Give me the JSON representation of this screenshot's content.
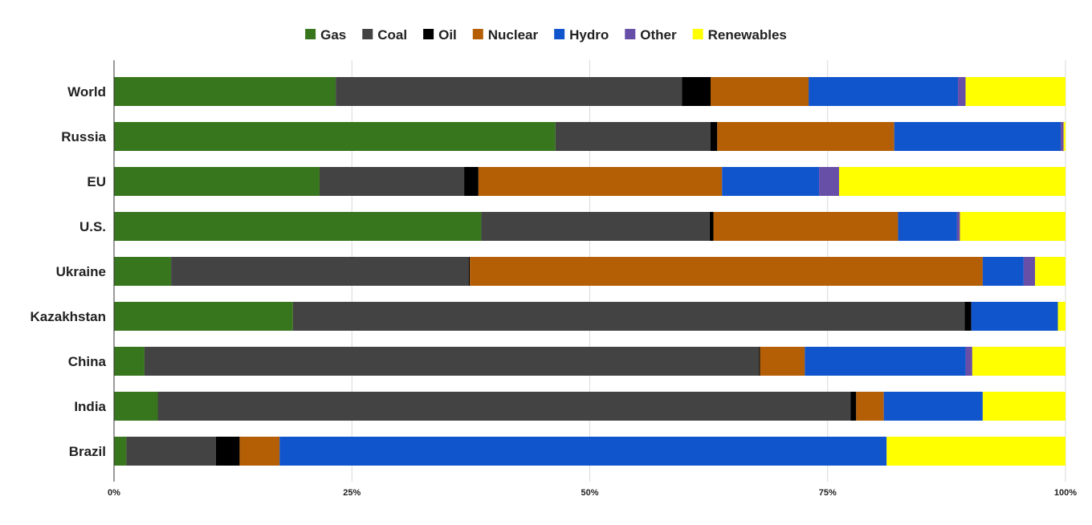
{
  "chart_data": {
    "type": "bar",
    "orientation": "horizontal",
    "stacked": true,
    "normalized": true,
    "title": "",
    "xlabel": "",
    "ylabel": "",
    "xlim": [
      0,
      100
    ],
    "x_ticks": [
      "0%",
      "25%",
      "50%",
      "75%",
      "100%"
    ],
    "x_tick_values": [
      0,
      25,
      50,
      75,
      100
    ],
    "grid": true,
    "legend_position": "top",
    "categories": [
      "World",
      "Russia",
      "EU",
      "U.S.",
      "Ukraine",
      "Kazakhstan",
      "China",
      "India",
      "Brazil"
    ],
    "series": [
      {
        "name": "Gas",
        "color": "#38761d",
        "values": [
          23.3,
          46.4,
          21.6,
          38.6,
          6.0,
          18.8,
          3.2,
          4.6,
          1.3
        ]
      },
      {
        "name": "Coal",
        "color": "#434343",
        "values": [
          36.4,
          16.3,
          15.2,
          24.0,
          31.3,
          70.6,
          64.6,
          72.8,
          9.4
        ]
      },
      {
        "name": "Oil",
        "color": "#000000",
        "values": [
          3.0,
          0.7,
          1.5,
          0.4,
          0.1,
          0.7,
          0.1,
          0.6,
          2.5
        ]
      },
      {
        "name": "Nuclear",
        "color": "#b45f06",
        "values": [
          10.3,
          18.6,
          25.6,
          19.4,
          53.9,
          0.0,
          4.7,
          2.9,
          4.2
        ]
      },
      {
        "name": "Hydro",
        "color": "#1155cc",
        "values": [
          15.7,
          17.5,
          10.2,
          6.2,
          4.3,
          9.1,
          16.9,
          10.4,
          63.8
        ]
      },
      {
        "name": "Other",
        "color": "#674ea7",
        "values": [
          0.8,
          0.3,
          2.1,
          0.3,
          1.2,
          0.0,
          0.7,
          0.0,
          0.0
        ]
      },
      {
        "name": "Renewables",
        "color": "#ffff00",
        "values": [
          10.5,
          0.2,
          23.8,
          11.1,
          3.2,
          0.8,
          9.8,
          8.7,
          18.8
        ]
      }
    ]
  }
}
